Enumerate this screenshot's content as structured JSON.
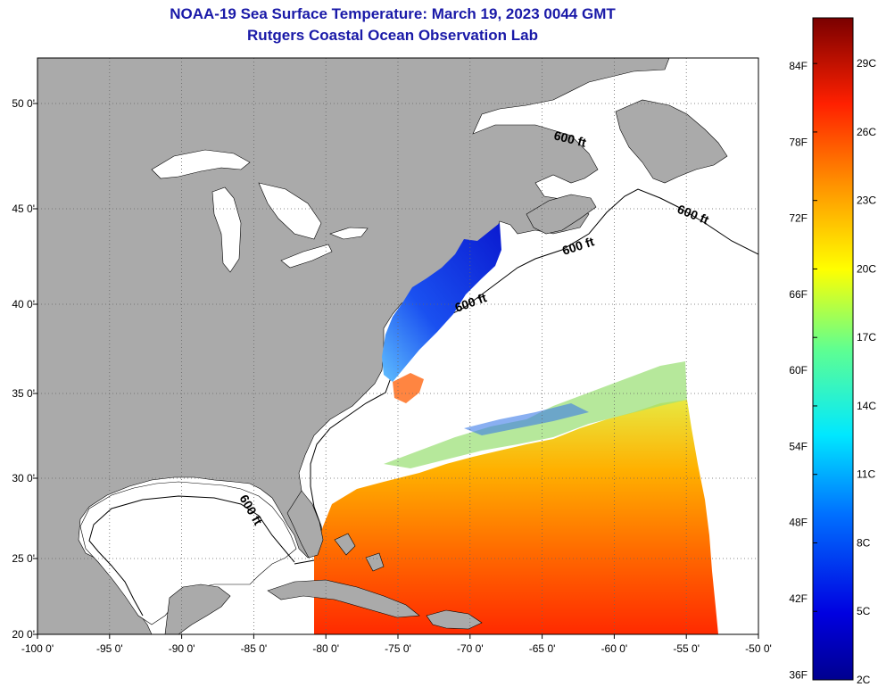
{
  "title": {
    "line1": "NOAA-19 Sea Surface Temperature:  March 19, 2023 0044 GMT",
    "line2": "Rutgers Coastal Ocean Observation Lab"
  },
  "axes": {
    "lon_labels": [
      "-100 0'",
      "-95 0'",
      "-90 0'",
      "-85 0'",
      "-80 0'",
      "-75 0'",
      "-70 0'",
      "-65 0'",
      "-60 0'",
      "-55 0'",
      "-50 0'"
    ],
    "lat_labels": [
      "50 0'",
      "45 0'",
      "40 0'",
      "35 0'",
      "30 0'",
      "25 0'",
      "20 0'"
    ]
  },
  "contours": {
    "label": "600 ft"
  },
  "colorbar": {
    "fahrenheit_labels": [
      "84F",
      "78F",
      "72F",
      "66F",
      "60F",
      "54F",
      "48F",
      "42F",
      "36F"
    ],
    "celsius_labels": [
      "29C",
      "26C",
      "23C",
      "20C",
      "17C",
      "14C",
      "11C",
      "8C",
      "5C",
      "2C"
    ],
    "range_c": [
      2,
      31
    ]
  },
  "colors": {
    "land": "#aaaaaa",
    "cloud": "#ffffff",
    "title": "#1a1aa8",
    "grid": "#666666"
  }
}
